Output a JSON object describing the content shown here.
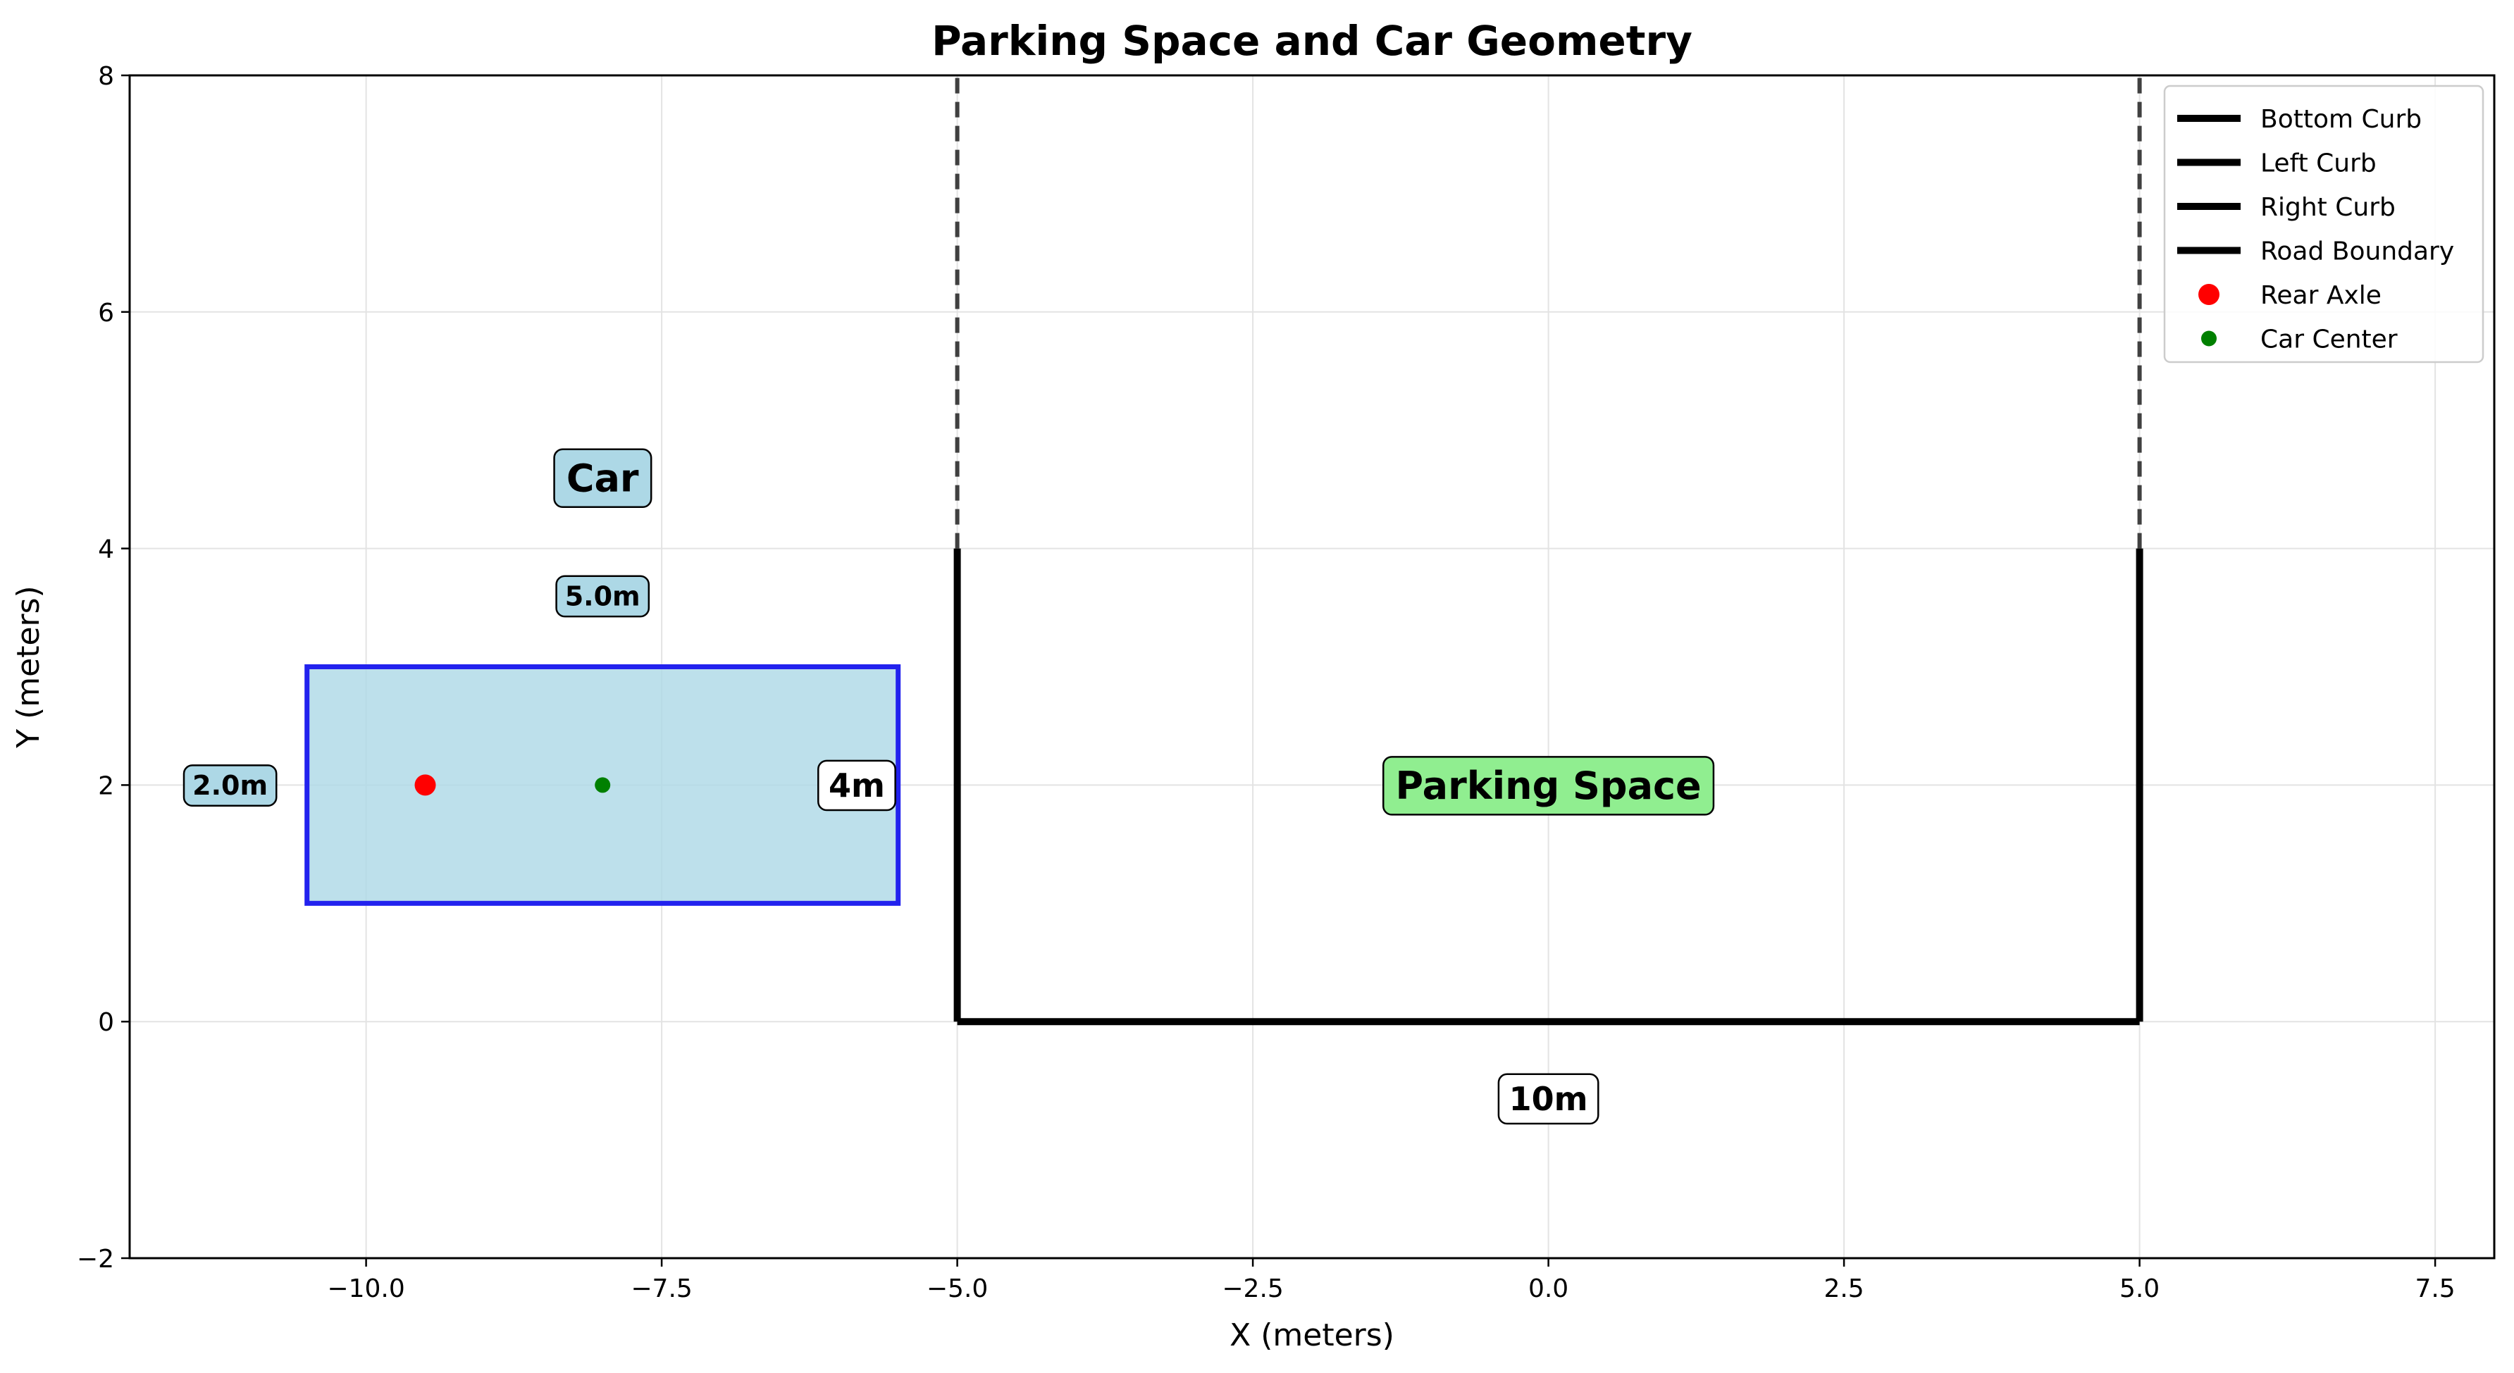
{
  "chart_data": {
    "type": "line",
    "title": "Parking Space and Car Geometry",
    "xlabel": "X (meters)",
    "ylabel": "Y (meters)",
    "xlim": [
      -12.0,
      8.0
    ],
    "ylim": [
      -2,
      8
    ],
    "grid": true,
    "x_ticks": [
      -10.0,
      -7.5,
      -5.0,
      -2.5,
      0.0,
      2.5,
      5.0,
      7.5
    ],
    "x_tick_labels": [
      "−10.0",
      "−7.5",
      "−5.0",
      "−2.5",
      "0.0",
      "2.5",
      "5.0",
      "7.5"
    ],
    "y_ticks": [
      -2,
      0,
      2,
      4,
      6,
      8
    ],
    "y_tick_labels": [
      "−2",
      "0",
      "2",
      "4",
      "6",
      "8"
    ],
    "series": [
      {
        "name": "Bottom Curb",
        "color": "#000000",
        "style": "solid",
        "x": [
          -5,
          5
        ],
        "y": [
          0,
          0
        ]
      },
      {
        "name": "Left Curb",
        "color": "#000000",
        "style": "solid",
        "x": [
          -5,
          -5
        ],
        "y": [
          0,
          4
        ]
      },
      {
        "name": "Right Curb",
        "color": "#000000",
        "style": "solid",
        "x": [
          5,
          5
        ],
        "y": [
          0,
          4
        ]
      },
      {
        "name": "Road Boundary",
        "color": "#000000",
        "style": "solid",
        "x": [],
        "y": []
      }
    ],
    "dashed_lines": [
      {
        "x": [
          -5,
          -5
        ],
        "y": [
          4,
          8
        ],
        "color": "#404040"
      },
      {
        "x": [
          5,
          5
        ],
        "y": [
          4,
          8
        ],
        "color": "#404040"
      }
    ],
    "car": {
      "x": [
        -10.5,
        -5.5
      ],
      "y": [
        1,
        3
      ],
      "fill": "#add8e6",
      "edge": "#2222ee"
    },
    "points": [
      {
        "name": "Rear Axle",
        "x": -9.5,
        "y": 2,
        "color": "#ff0000",
        "size": 15
      },
      {
        "name": "Car Center",
        "x": -8,
        "y": 2,
        "color": "#008000",
        "size": 11
      }
    ],
    "annotations": [
      {
        "text": "Car",
        "x": -8,
        "y": 4.6,
        "bg": "#add8e6",
        "size": 54
      },
      {
        "text": "5.0m",
        "x": -8,
        "y": 3.6,
        "bg": "#add8e6",
        "size": 38
      },
      {
        "text": "2.0m",
        "x": -11.15,
        "y": 2,
        "bg": "#add8e6",
        "size": 38
      },
      {
        "text": "4m",
        "x": -5.85,
        "y": 2,
        "bg": "#ffffff",
        "size": 46
      },
      {
        "text": "Parking Space",
        "x": 0,
        "y": 2,
        "bg": "#90ee90",
        "size": 54
      },
      {
        "text": "10m",
        "x": 0,
        "y": -0.65,
        "bg": "#ffffff",
        "size": 46
      }
    ],
    "legend": {
      "position": "top-right",
      "entries": [
        {
          "label": "Bottom Curb",
          "kind": "line",
          "color": "#000000"
        },
        {
          "label": "Left Curb",
          "kind": "line",
          "color": "#000000"
        },
        {
          "label": "Right Curb",
          "kind": "line",
          "color": "#000000"
        },
        {
          "label": "Road Boundary",
          "kind": "line",
          "color": "#000000"
        },
        {
          "label": "Rear Axle",
          "kind": "marker",
          "color": "#ff0000"
        },
        {
          "label": "Car Center",
          "kind": "marker",
          "color": "#008000"
        }
      ]
    }
  }
}
